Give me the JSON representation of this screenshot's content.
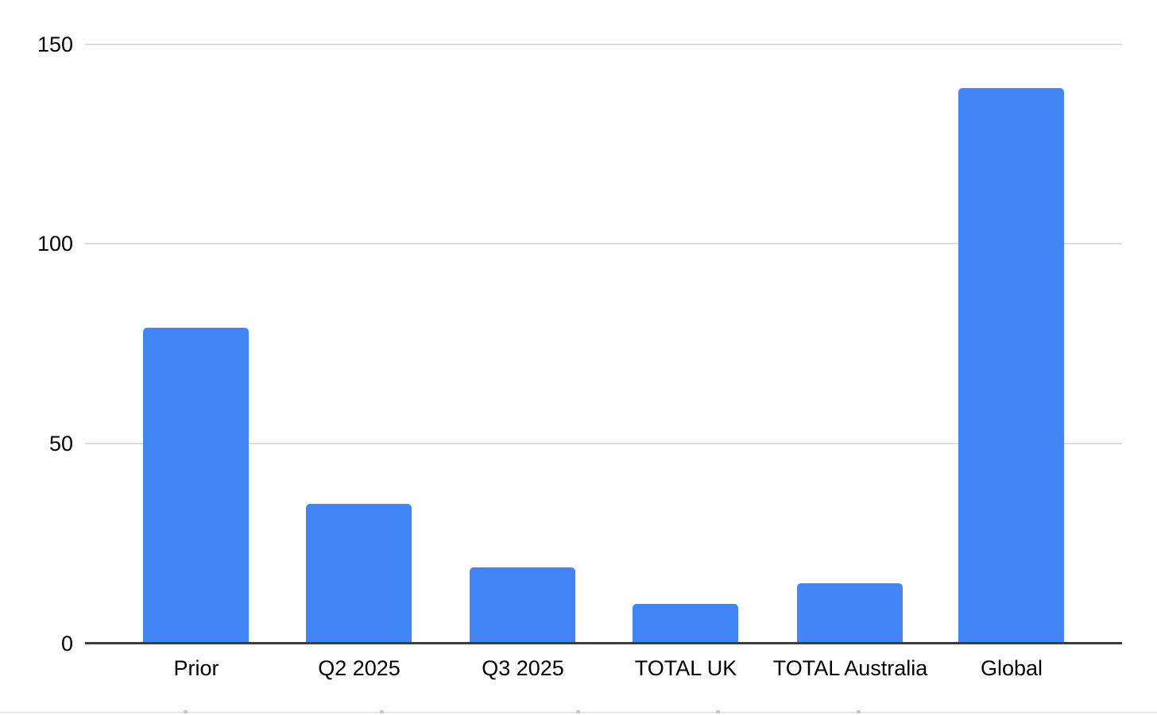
{
  "chart_data": {
    "type": "bar",
    "title": "",
    "xlabel": "",
    "ylabel": "",
    "categories": [
      "Prior",
      "Q2 2025",
      "Q3 2025",
      "TOTAL UK",
      "TOTAL Australia",
      "Global"
    ],
    "values": [
      79,
      35,
      19,
      10,
      15,
      139
    ],
    "series_color": "#4285f4",
    "ylim": [
      0,
      150
    ],
    "y_ticks": [
      0,
      50,
      100,
      150
    ],
    "y_tick_labels": [
      "0",
      "50",
      "100",
      "150"
    ],
    "grid": "horizontal-gridlines-on",
    "legend_position": "none",
    "colors": {
      "bar": "#4285f4",
      "gridline": "#dcdcdc",
      "axis_line": "#3d3d3d",
      "tick_label": "#000000",
      "background": "#ffffff"
    }
  }
}
